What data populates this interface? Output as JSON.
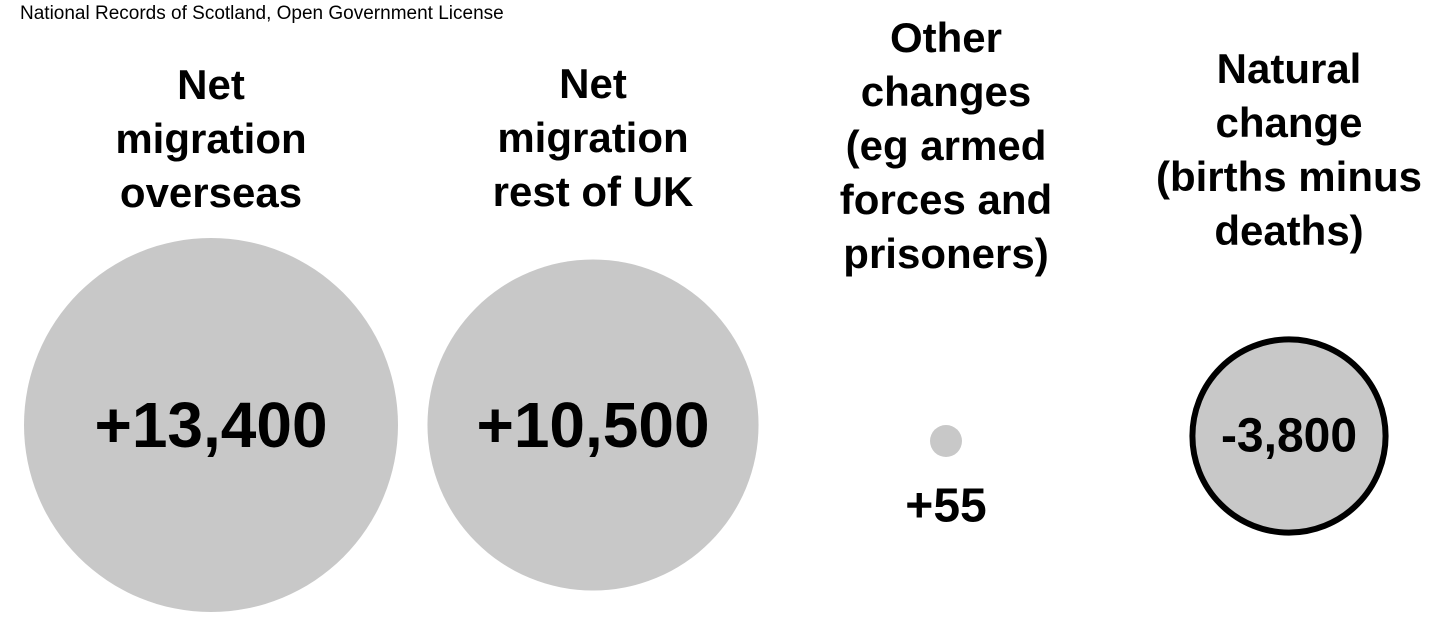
{
  "source_note": "National Records of Scotland, Open Government License",
  "colors": {
    "bubble_fill": "#c8c8c8",
    "negative_outline": "#000000",
    "text": "#000000",
    "background": "#ffffff"
  },
  "chart_data": {
    "type": "bubble",
    "title": "",
    "items": [
      {
        "category": "Net\nmigration\noverseas",
        "value": 13400,
        "label": "+13,400",
        "negative": false
      },
      {
        "category": "Net\nmigration\nrest of UK",
        "value": 10500,
        "label": "+10,500",
        "negative": false
      },
      {
        "category": "Other\nchanges\n(eg armed\nforces and\nprisoners)",
        "value": 55,
        "label": "+55",
        "negative": false
      },
      {
        "category": "Natural\nchange\n(births minus\ndeaths)",
        "value": -3800,
        "label": "-3,800",
        "negative": true
      }
    ]
  }
}
